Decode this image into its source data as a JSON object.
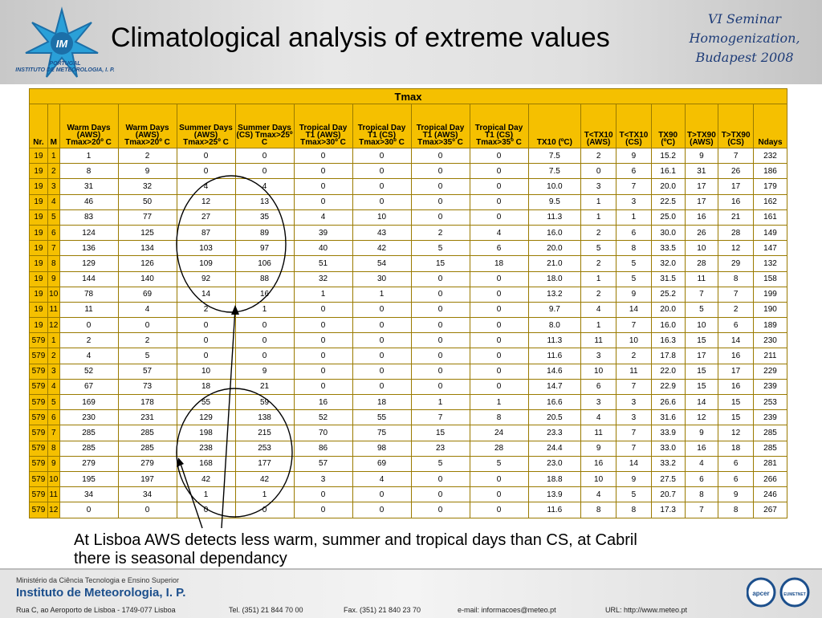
{
  "header": {
    "title": "Climatological analysis of extreme values",
    "logo_text": [
      "PORTUGAL",
      "INSTITUTO DE METEOROLOGIA, I. P."
    ],
    "logo_mark": "IM",
    "seminar": [
      "VI Seminar",
      "Homogenization,",
      "Budapest 2008"
    ]
  },
  "table": {
    "group_header": "Tmax",
    "columns": [
      "Nr.",
      "M",
      "Warm Days (AWS) Tmax>20º C",
      "Warm Days (AWS) Tmax>20º C",
      "Summer Days (AWS) Tmax>25º C",
      "Summer Days (CS) Tmax>25º C",
      "Tropical Day T1 (AWS) Tmax>30º C",
      "Tropical Day T1 (CS) Tmax>30º C",
      "Tropical Day T1 (AWS) Tmax>35º C",
      "Tropical Day T1 (CS) Tmax>35º C",
      "TX10 (ºC)",
      "T<TX10 (AWS)",
      "T<TX10 (CS)",
      "TX90 (ºC)",
      "T>TX90 (AWS)",
      "T>TX90 (CS)",
      "Ndays"
    ],
    "rows": [
      [
        "19",
        "1",
        "1",
        "2",
        "0",
        "0",
        "0",
        "0",
        "0",
        "0",
        "7.5",
        "2",
        "9",
        "15.2",
        "9",
        "7",
        "232"
      ],
      [
        "19",
        "2",
        "8",
        "9",
        "0",
        "0",
        "0",
        "0",
        "0",
        "0",
        "7.5",
        "0",
        "6",
        "16.1",
        "31",
        "26",
        "186"
      ],
      [
        "19",
        "3",
        "31",
        "32",
        "4",
        "4",
        "0",
        "0",
        "0",
        "0",
        "10.0",
        "3",
        "7",
        "20.0",
        "17",
        "17",
        "179"
      ],
      [
        "19",
        "4",
        "46",
        "50",
        "12",
        "13",
        "0",
        "0",
        "0",
        "0",
        "9.5",
        "1",
        "3",
        "22.5",
        "17",
        "16",
        "162"
      ],
      [
        "19",
        "5",
        "83",
        "77",
        "27",
        "35",
        "4",
        "10",
        "0",
        "0",
        "11.3",
        "1",
        "1",
        "25.0",
        "16",
        "21",
        "161"
      ],
      [
        "19",
        "6",
        "124",
        "125",
        "87",
        "89",
        "39",
        "43",
        "2",
        "4",
        "16.0",
        "2",
        "6",
        "30.0",
        "26",
        "28",
        "149"
      ],
      [
        "19",
        "7",
        "136",
        "134",
        "103",
        "97",
        "40",
        "42",
        "5",
        "6",
        "20.0",
        "5",
        "8",
        "33.5",
        "10",
        "12",
        "147"
      ],
      [
        "19",
        "8",
        "129",
        "126",
        "109",
        "106",
        "51",
        "54",
        "15",
        "18",
        "21.0",
        "2",
        "5",
        "32.0",
        "28",
        "29",
        "132"
      ],
      [
        "19",
        "9",
        "144",
        "140",
        "92",
        "88",
        "32",
        "30",
        "0",
        "0",
        "18.0",
        "1",
        "5",
        "31.5",
        "11",
        "8",
        "158"
      ],
      [
        "19",
        "10",
        "78",
        "69",
        "14",
        "16",
        "1",
        "1",
        "0",
        "0",
        "13.2",
        "2",
        "9",
        "25.2",
        "7",
        "7",
        "199"
      ],
      [
        "19",
        "11",
        "11",
        "4",
        "2",
        "1",
        "0",
        "0",
        "0",
        "0",
        "9.7",
        "4",
        "14",
        "20.0",
        "5",
        "2",
        "190"
      ],
      [
        "19",
        "12",
        "0",
        "0",
        "0",
        "0",
        "0",
        "0",
        "0",
        "0",
        "8.0",
        "1",
        "7",
        "16.0",
        "10",
        "6",
        "189"
      ],
      [
        "579",
        "1",
        "2",
        "2",
        "0",
        "0",
        "0",
        "0",
        "0",
        "0",
        "11.3",
        "11",
        "10",
        "16.3",
        "15",
        "14",
        "230"
      ],
      [
        "579",
        "2",
        "4",
        "5",
        "0",
        "0",
        "0",
        "0",
        "0",
        "0",
        "11.6",
        "3",
        "2",
        "17.8",
        "17",
        "16",
        "211"
      ],
      [
        "579",
        "3",
        "52",
        "57",
        "10",
        "9",
        "0",
        "0",
        "0",
        "0",
        "14.6",
        "10",
        "11",
        "22.0",
        "15",
        "17",
        "229"
      ],
      [
        "579",
        "4",
        "67",
        "73",
        "18",
        "21",
        "0",
        "0",
        "0",
        "0",
        "14.7",
        "6",
        "7",
        "22.9",
        "15",
        "16",
        "239"
      ],
      [
        "579",
        "5",
        "169",
        "178",
        "55",
        "59",
        "16",
        "18",
        "1",
        "1",
        "16.6",
        "3",
        "3",
        "26.6",
        "14",
        "15",
        "253"
      ],
      [
        "579",
        "6",
        "230",
        "231",
        "129",
        "138",
        "52",
        "55",
        "7",
        "8",
        "20.5",
        "4",
        "3",
        "31.6",
        "12",
        "15",
        "239"
      ],
      [
        "579",
        "7",
        "285",
        "285",
        "198",
        "215",
        "70",
        "75",
        "15",
        "24",
        "23.3",
        "11",
        "7",
        "33.9",
        "9",
        "12",
        "285"
      ],
      [
        "579",
        "8",
        "285",
        "285",
        "238",
        "253",
        "86",
        "98",
        "23",
        "28",
        "24.4",
        "9",
        "7",
        "33.0",
        "16",
        "18",
        "285"
      ],
      [
        "579",
        "9",
        "279",
        "279",
        "168",
        "177",
        "57",
        "69",
        "5",
        "5",
        "23.0",
        "16",
        "14",
        "33.2",
        "4",
        "6",
        "281"
      ],
      [
        "579",
        "10",
        "195",
        "197",
        "42",
        "42",
        "3",
        "4",
        "0",
        "0",
        "18.8",
        "10",
        "9",
        "27.5",
        "6",
        "6",
        "266"
      ],
      [
        "579",
        "11",
        "34",
        "34",
        "1",
        "1",
        "0",
        "0",
        "0",
        "0",
        "13.9",
        "4",
        "5",
        "20.7",
        "8",
        "9",
        "246"
      ],
      [
        "579",
        "12",
        "0",
        "0",
        "0",
        "0",
        "0",
        "0",
        "0",
        "0",
        "11.6",
        "8",
        "8",
        "17.3",
        "7",
        "8",
        "267"
      ]
    ]
  },
  "caption": "At Lisboa AWS detects less warm, summer and tropical days than CS, at Cabril there is seasonal dependancy",
  "footer": {
    "ministry": "Ministério da Ciência Tecnologia e Ensino Superior",
    "institute": "Instituto de Meteorologia, I. P.",
    "address": "Rua C, ao Aeroporto de Lisboa - 1749-077 Lisboa",
    "tel": "Tel. (351) 21 844 70 00",
    "fax": "Fax. (351) 21 840 23 70",
    "email": "e-mail: informacoes@meteo.pt",
    "url": "URL: http://www.meteo.pt",
    "badge_left": "apcer",
    "badge_right": "EUMETNET"
  },
  "colors": {
    "table_header": "#f5c000",
    "title": "#000000",
    "seminar": "#1e3c78",
    "institute": "#1c4f8c"
  }
}
